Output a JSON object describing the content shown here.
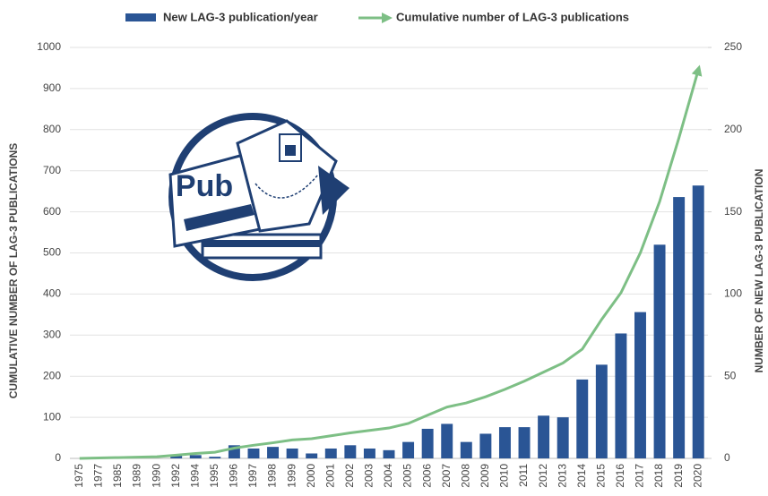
{
  "chart_data": {
    "type": "bar-line",
    "logo_text": "Pub",
    "y_label": "CUMULATIVE NUMBER OF LAG-3 PUBLICATIONS",
    "y2_label": "NUMBER OF NEW LAG-3 PUBLICATION",
    "categories": [
      "1975",
      "1977",
      "1985",
      "1989",
      "1990",
      "1992",
      "1994",
      "1995",
      "1996",
      "1997",
      "1998",
      "1999",
      "2000",
      "2001",
      "2002",
      "2003",
      "2004",
      "2005",
      "2006",
      "2007",
      "2008",
      "2009",
      "2010",
      "2011",
      "2012",
      "2013",
      "2014",
      "2015",
      "2016",
      "2017",
      "2018",
      "2019",
      "2020"
    ],
    "series": [
      {
        "name": "New LAG-3 publication/year",
        "type": "bar",
        "axis": "y2",
        "color": "#2a5595",
        "values": [
          0,
          0,
          0,
          0,
          0,
          2,
          2,
          1,
          8,
          6,
          7,
          6,
          3,
          6,
          8,
          6,
          5,
          10,
          18,
          21,
          10,
          15,
          19,
          19,
          26,
          25,
          48,
          57,
          76,
          89,
          130,
          159,
          166
        ]
      },
      {
        "name": "Cumulative number of LAG-3 publications",
        "type": "line",
        "axis": "y",
        "color": "#7dbf85",
        "values": [
          0,
          1,
          2,
          3,
          4,
          8,
          12,
          15,
          25,
          32,
          38,
          45,
          48,
          55,
          62,
          68,
          74,
          85,
          105,
          125,
          135,
          150,
          168,
          188,
          210,
          232,
          266,
          338,
          403,
          500,
          625,
          780,
          945
        ]
      }
    ],
    "ylim": [
      0,
      1000
    ],
    "yticks": [
      0,
      100,
      200,
      300,
      400,
      500,
      600,
      700,
      800,
      900,
      1000
    ],
    "y2lim": [
      0,
      250
    ],
    "y2ticks": [
      0,
      50,
      100,
      150,
      200,
      250
    ],
    "grid": true
  }
}
